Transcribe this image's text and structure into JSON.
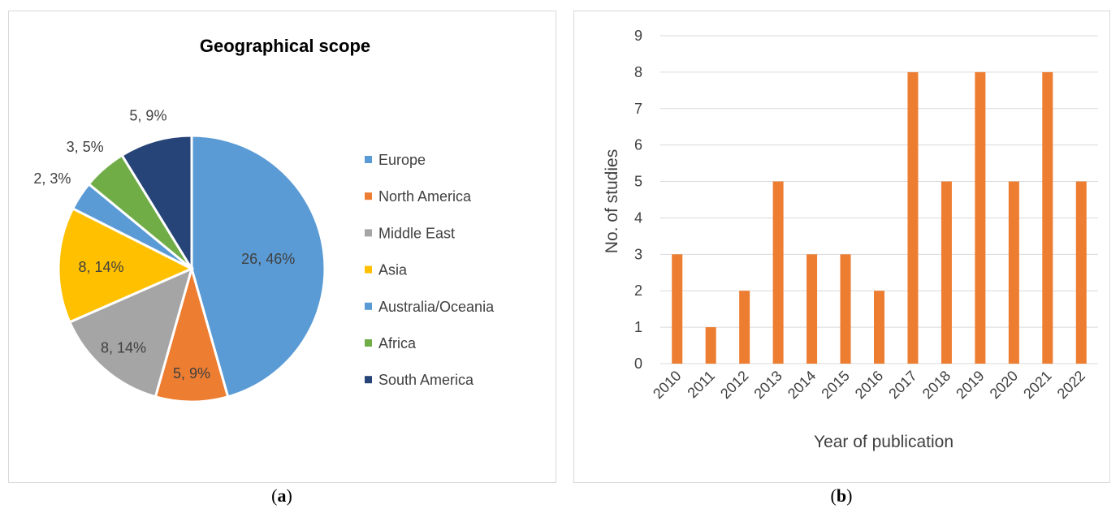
{
  "chart_data": [
    {
      "type": "pie",
      "title": "Geographical scope",
      "legend": "right",
      "slices": [
        {
          "name": "Europe",
          "value": 26,
          "label": "26, 46%",
          "color": "#5b9bd5"
        },
        {
          "name": "North America",
          "value": 5,
          "label": "5, 9%",
          "color": "#ed7d31"
        },
        {
          "name": "Middle East",
          "value": 8,
          "label": "8, 14%",
          "color": "#a5a5a5"
        },
        {
          "name": "Asia",
          "value": 8,
          "label": "8, 14%",
          "color": "#ffc000"
        },
        {
          "name": "Australia/Oceania",
          "value": 2,
          "label": "2, 3%",
          "color": "#5b9bd5"
        },
        {
          "name": "Africa",
          "value": 3,
          "label": "3, 5%",
          "color": "#70ad47"
        },
        {
          "name": "South America",
          "value": 5,
          "label": "5, 9%",
          "color": "#264478"
        }
      ]
    },
    {
      "type": "bar",
      "xlabel": "Year of publication",
      "ylabel": "No. of studies",
      "ylim": [
        0,
        9
      ],
      "yticks": [
        "0",
        "1",
        "2",
        "3",
        "4",
        "5",
        "6",
        "7",
        "8",
        "9"
      ],
      "grid": true,
      "color": "#ed7d31",
      "categories": [
        "2010",
        "2011",
        "2012",
        "2013",
        "2014",
        "2015",
        "2016",
        "2017",
        "2018",
        "2019",
        "2020",
        "2021",
        "2022"
      ],
      "values": [
        3,
        1,
        2,
        5,
        3,
        3,
        2,
        8,
        5,
        8,
        5,
        8,
        5
      ]
    }
  ],
  "captions": {
    "a": "a",
    "b": "b"
  }
}
